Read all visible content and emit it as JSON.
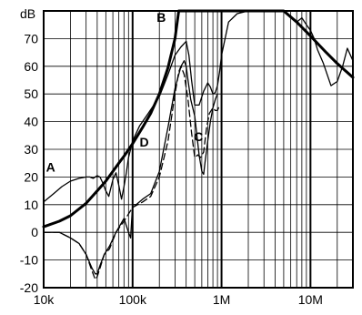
{
  "chart_data": {
    "type": "line",
    "title": "",
    "xlabel": "",
    "ylabel": "dB",
    "xscale": "log",
    "xlim": [
      10000,
      30000000
    ],
    "ylim": [
      -20,
      80
    ],
    "grid": true,
    "x_ticks": [
      {
        "value": 10000,
        "label": "10k"
      },
      {
        "value": 100000,
        "label": "100k"
      },
      {
        "value": 1000000,
        "label": "1M"
      },
      {
        "value": 10000000,
        "label": "10M"
      }
    ],
    "y_ticks": [
      {
        "value": -20,
        "label": "-20"
      },
      {
        "value": -10,
        "label": "-10"
      },
      {
        "value": 0,
        "label": "0"
      },
      {
        "value": 10,
        "label": "10"
      },
      {
        "value": 20,
        "label": "20"
      },
      {
        "value": 30,
        "label": "30"
      },
      {
        "value": 40,
        "label": "40"
      },
      {
        "value": 50,
        "label": "50"
      },
      {
        "value": 60,
        "label": "60"
      },
      {
        "value": 70,
        "label": "70"
      }
    ],
    "y_unit_label": "dB",
    "series": [
      {
        "name": "A",
        "style": "solid-thin",
        "x": [
          10000,
          13000,
          16000,
          20000,
          25000,
          30000,
          33000,
          36000,
          40000,
          43000,
          46000,
          50000,
          54000,
          60000,
          65000,
          70000,
          75000,
          80000,
          85000,
          90000,
          100000,
          120000,
          150000,
          200000,
          250000,
          300000,
          350000,
          400000,
          430000,
          460000,
          500000,
          560000,
          630000,
          700000,
          750000,
          800000,
          850000,
          900000,
          950000,
          1000000,
          1200000,
          1500000,
          2000000,
          3000000,
          4000000,
          5000000,
          6000000,
          7000000,
          8000000,
          9000000,
          10000000,
          11000000,
          12000000,
          14000000,
          17000000,
          20000000,
          23000000,
          26000000,
          30000000
        ],
        "y": [
          11,
          14,
          16.5,
          18.5,
          19.5,
          20,
          20,
          19.5,
          20.5,
          20,
          18,
          15,
          13,
          19,
          21.5,
          17,
          12,
          16.5,
          21.5,
          27,
          33,
          38.5,
          43,
          49,
          57,
          64,
          67,
          69,
          64,
          55,
          46,
          46,
          51,
          54,
          52.5,
          50,
          50.5,
          53,
          58,
          64,
          76,
          79,
          80,
          80,
          80,
          80,
          77.5,
          76,
          77.5,
          75,
          73,
          70,
          66,
          61,
          53,
          54.5,
          60,
          66.5,
          62
        ]
      },
      {
        "name": "B",
        "style": "solid-thick",
        "x": [
          10000,
          15000,
          20000,
          30000,
          40000,
          50000,
          60000,
          70000,
          80000,
          100000,
          130000,
          160000,
          200000,
          250000,
          300000,
          330000,
          1000000,
          3000000,
          5000000,
          7000000,
          10000000,
          15000000,
          20000000,
          30000000
        ],
        "y": [
          2,
          4,
          6,
          10.5,
          15,
          18.5,
          22,
          25,
          27.5,
          32,
          38,
          43,
          50,
          59.5,
          70,
          80,
          80,
          80,
          80,
          76,
          71,
          65,
          61,
          56
        ]
      },
      {
        "name": "C",
        "style": "dashed",
        "x": [
          10000,
          15000,
          20000,
          25000,
          30000,
          35000,
          38000,
          40000,
          43000,
          48000,
          55000,
          65000,
          80000,
          100000,
          130000,
          160000,
          200000,
          250000,
          300000,
          330000,
          350000,
          380000,
          420000,
          460000,
          500000,
          540000,
          580000,
          630000,
          680000,
          730000,
          800000,
          850000,
          900000,
          950000
        ],
        "y": [
          0,
          0,
          -2,
          -4,
          -8,
          -14,
          -17,
          -16,
          -13,
          -8,
          -6,
          0,
          4,
          9,
          11,
          13,
          20,
          33,
          50,
          58,
          60,
          57,
          48,
          36,
          27,
          28,
          27,
          29,
          38,
          43,
          45,
          44,
          44,
          46
        ]
      },
      {
        "name": "D",
        "style": "solid-thin",
        "x": [
          10000,
          15000,
          20000,
          25000,
          30000,
          35000,
          38000,
          40000,
          43000,
          48000,
          55000,
          65000,
          80000,
          90000,
          95000,
          100000,
          110000,
          130000,
          160000,
          200000,
          250000,
          300000,
          350000,
          380000,
          400000,
          420000,
          450000,
          500000,
          560000,
          600000,
          630000,
          650000,
          700000,
          750000,
          800000,
          850000,
          900000
        ],
        "y": [
          0,
          0,
          -2,
          -4,
          -8,
          -13,
          -15,
          -15,
          -12,
          -8,
          -5,
          0,
          5,
          0,
          -2,
          10,
          10,
          12,
          14,
          22,
          38,
          52,
          60,
          62,
          60,
          55,
          48,
          42,
          28,
          22,
          21,
          25,
          33,
          40,
          45,
          48,
          50
        ]
      }
    ],
    "annotations": [
      {
        "text": "A",
        "x": 12000,
        "y": 22
      },
      {
        "text": "B",
        "x": 210000,
        "y": 76
      },
      {
        "text": "C",
        "x": 550000,
        "y": 33
      },
      {
        "text": "D",
        "x": 135000,
        "y": 31
      }
    ]
  }
}
